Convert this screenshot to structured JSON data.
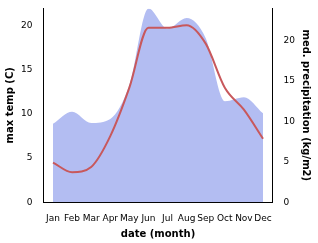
{
  "chart_data": {
    "type": "line",
    "xlabel": "date (month)",
    "ylabel": "max temp (C)",
    "y2label": "med. precipitation (kg/m2)",
    "categories": [
      "Jan",
      "Feb",
      "Mar",
      "Apr",
      "May",
      "Jun",
      "Jul",
      "Aug",
      "Sep",
      "Oct",
      "Nov",
      "Dec"
    ],
    "series": [
      {
        "type": "area",
        "axis": "y2",
        "color": "#b3bdf2",
        "values": [
          9.7,
          11.2,
          9.8,
          10.3,
          14.5,
          24.0,
          21.5,
          22.8,
          20.3,
          12.5,
          13.0,
          11.0
        ]
      },
      {
        "type": "line",
        "axis": "y",
        "color": "#c8585c",
        "values": [
          4.5,
          3.4,
          4.0,
          7.5,
          13.0,
          19.8,
          19.8,
          20.1,
          18.0,
          13.0,
          10.5,
          7.2
        ]
      }
    ],
    "ylim": [
      0,
      22
    ],
    "yticks": [
      0,
      5,
      10,
      15,
      20
    ],
    "y2lim": [
      0,
      24
    ],
    "y2ticks": [
      0,
      5,
      10,
      15,
      20
    ],
    "grid": false
  }
}
